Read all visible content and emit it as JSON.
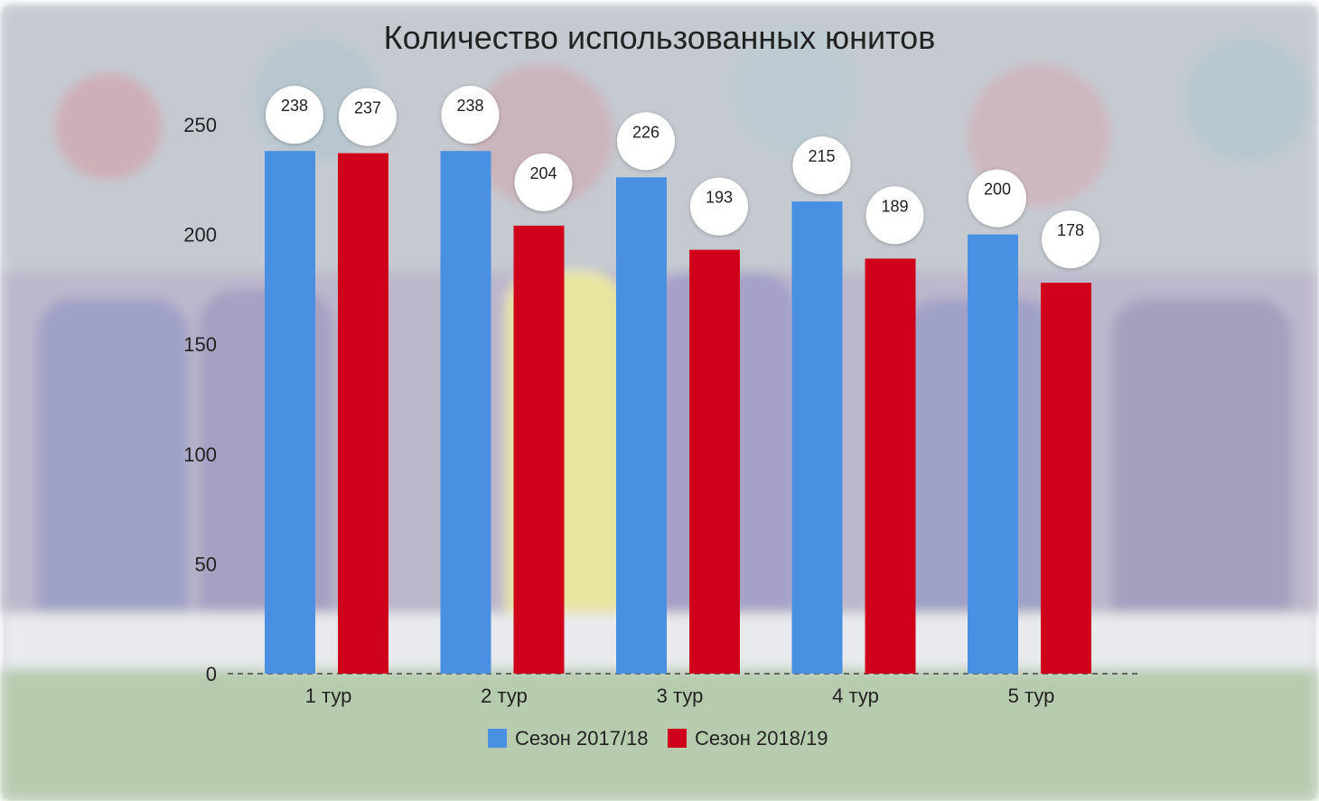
{
  "colors": {
    "series_a": "#4a90e2",
    "series_b": "#d0021b",
    "bubble": "#ffffff",
    "text": "#222222"
  },
  "chart_data": {
    "type": "bar",
    "title": "Количество использованных юнитов",
    "categories": [
      "1 тур",
      "2 тур",
      "3 тур",
      "4 тур",
      "5 тур"
    ],
    "series": [
      {
        "name": "Сезон 2017/18",
        "values": [
          238,
          238,
          226,
          215,
          200
        ]
      },
      {
        "name": "Сезон 2018/19",
        "values": [
          237,
          204,
          193,
          189,
          178
        ]
      }
    ],
    "yticks": [
      "0",
      "50",
      "100",
      "150",
      "200",
      "250"
    ],
    "ylim": [
      0,
      250
    ],
    "xlabel": "",
    "ylabel": "",
    "legend_position": "bottom",
    "background": "faded photo of football team huddle"
  }
}
